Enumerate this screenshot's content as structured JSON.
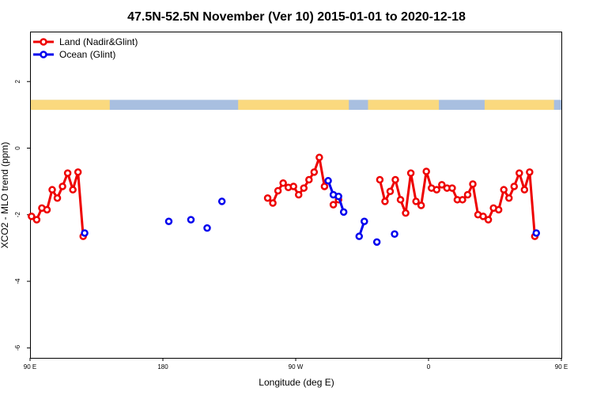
{
  "chart_data": {
    "type": "line",
    "title": "47.5N-52.5N November (Ver 10)   2015-01-01 to 2020-12-18",
    "xlabel": "Longitude (deg E)",
    "ylabel": "XCO2 - MLO trend (ppm)",
    "xlim": [
      90,
      450
    ],
    "ylim": [
      -6.3,
      3.5
    ],
    "x_ticks": [
      {
        "value": 90,
        "label": "90 E"
      },
      {
        "value": 180,
        "label": "180"
      },
      {
        "value": 270,
        "label": "90 W"
      },
      {
        "value": 360,
        "label": "0"
      },
      {
        "value": 450,
        "label": "90 E"
      },
      {
        "value": 540,
        "label": "180"
      }
    ],
    "y_ticks": [
      {
        "value": 2,
        "label": "2"
      },
      {
        "value": 0,
        "label": "0"
      },
      {
        "value": -2,
        "label": "-2"
      },
      {
        "value": -4,
        "label": "-4"
      },
      {
        "value": -6,
        "label": "-6"
      }
    ],
    "legend": {
      "position": "top-left"
    },
    "land_ocean_strip": {
      "y_value_range": [
        1.15,
        1.45
      ],
      "land_color": "#fad97e",
      "ocean_color": "#a8bfe0",
      "land_ranges": [
        [
          90,
          144
        ],
        [
          231,
          306
        ],
        [
          319,
          367
        ],
        [
          398,
          445
        ],
        [
          468,
          498
        ]
      ]
    },
    "series": [
      {
        "name": "Land (Nadir&Glint)",
        "color": "#ee0000",
        "segments": [
          [
            [
              91,
              -2.05
            ],
            [
              94.5,
              -2.15
            ],
            [
              98,
              -1.8
            ],
            [
              101.5,
              -1.85
            ],
            [
              105,
              -1.25
            ],
            [
              108.5,
              -1.5
            ],
            [
              112,
              -1.15
            ],
            [
              115.5,
              -0.75
            ],
            [
              119,
              -1.25
            ],
            [
              122.5,
              -0.72
            ],
            [
              126,
              -2.65
            ]
          ],
          [
            [
              251,
              -1.5
            ],
            [
              254.5,
              -1.65
            ],
            [
              258,
              -1.28
            ],
            [
              261.5,
              -1.05
            ],
            [
              265,
              -1.18
            ],
            [
              268.5,
              -1.15
            ],
            [
              272,
              -1.4
            ],
            [
              275.5,
              -1.2
            ],
            [
              279,
              -0.95
            ],
            [
              282.5,
              -0.72
            ],
            [
              286,
              -0.28
            ],
            [
              289.5,
              -1.15
            ]
          ],
          [
            [
              295.5,
              -1.7
            ],
            [
              299,
              -1.55
            ]
          ],
          [
            [
              327,
              -0.95
            ],
            [
              330.5,
              -1.6
            ],
            [
              334,
              -1.3
            ],
            [
              337.5,
              -0.95
            ],
            [
              341,
              -1.55
            ],
            [
              344.5,
              -1.95
            ],
            [
              348,
              -0.75
            ],
            [
              351.5,
              -1.6
            ],
            [
              355,
              -1.72
            ],
            [
              358.5,
              -0.7
            ],
            [
              362,
              -1.2
            ],
            [
              365.5,
              -1.25
            ],
            [
              369,
              -1.1
            ],
            [
              372.5,
              -1.2
            ],
            [
              376,
              -1.2
            ],
            [
              379.5,
              -1.55
            ],
            [
              383,
              -1.55
            ],
            [
              386.5,
              -1.4
            ],
            [
              390,
              -1.08
            ],
            [
              393.5,
              -2.0
            ],
            [
              397,
              -2.05
            ],
            [
              400.5,
              -2.15
            ],
            [
              404,
              -1.8
            ],
            [
              407.5,
              -1.85
            ],
            [
              411,
              -1.25
            ],
            [
              414.5,
              -1.5
            ],
            [
              418,
              -1.15
            ],
            [
              421.5,
              -0.75
            ],
            [
              425,
              -1.25
            ],
            [
              428.5,
              -0.72
            ],
            [
              432,
              -2.65
            ]
          ]
        ]
      },
      {
        "name": "Ocean (Glint)",
        "color": "#0000ee",
        "segments": [
          [
            [
              127,
              -2.55
            ]
          ],
          [
            [
              184,
              -2.2
            ]
          ],
          [
            [
              199,
              -2.15
            ]
          ],
          [
            [
              210,
              -2.4
            ]
          ],
          [
            [
              220,
              -1.6
            ]
          ],
          [
            [
              292,
              -0.98
            ],
            [
              295.5,
              -1.4
            ],
            [
              299,
              -1.45
            ],
            [
              302.5,
              -1.92
            ]
          ],
          [
            [
              313,
              -2.65
            ],
            [
              316.5,
              -2.2
            ]
          ],
          [
            [
              325,
              -2.82
            ]
          ],
          [
            [
              337,
              -2.58
            ]
          ],
          [
            [
              433,
              -2.55
            ]
          ]
        ]
      }
    ]
  }
}
